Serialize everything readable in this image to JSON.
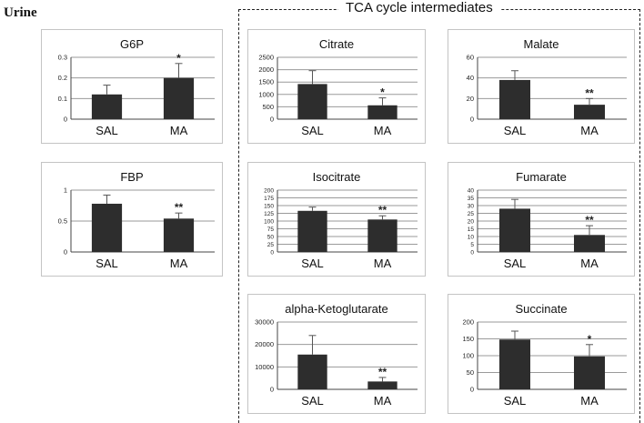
{
  "page": {
    "label": "Urine",
    "group_title": "TCA cycle intermediates"
  },
  "chart_data": [
    {
      "id": "g6p",
      "type": "bar",
      "title": "G6P",
      "categories": [
        "SAL",
        "MA"
      ],
      "values": [
        0.12,
        0.2
      ],
      "errors": [
        0.045,
        0.07
      ],
      "significance": [
        "",
        "*"
      ],
      "ylim": [
        0,
        0.3
      ],
      "yticks": [
        "0",
        "0.1",
        "0.2",
        "0.3"
      ],
      "ytick_values": [
        0,
        0.1,
        0.2,
        0.3
      ]
    },
    {
      "id": "fbp",
      "type": "bar",
      "title": "FBP",
      "categories": [
        "SAL",
        "MA"
      ],
      "values": [
        0.78,
        0.54
      ],
      "errors": [
        0.14,
        0.09
      ],
      "significance": [
        "",
        "**"
      ],
      "ylim": [
        0,
        1
      ],
      "yticks": [
        "0",
        "0.5",
        "1"
      ],
      "ytick_values": [
        0,
        0.5,
        1
      ]
    },
    {
      "id": "citrate",
      "type": "bar",
      "title": "Citrate",
      "categories": [
        "SAL",
        "MA"
      ],
      "values": [
        1420,
        560
      ],
      "errors": [
        540,
        300
      ],
      "significance": [
        "",
        "*"
      ],
      "ylim": [
        0,
        2500
      ],
      "yticks": [
        "0",
        "500",
        "1000",
        "1500",
        "2000",
        "2500"
      ],
      "ytick_values": [
        0,
        500,
        1000,
        1500,
        2000,
        2500
      ]
    },
    {
      "id": "malate",
      "type": "bar",
      "title": "Malate",
      "categories": [
        "SAL",
        "MA"
      ],
      "values": [
        38,
        14
      ],
      "errors": [
        9,
        6
      ],
      "significance": [
        "",
        "**"
      ],
      "ylim": [
        0,
        60
      ],
      "yticks": [
        "0",
        "20",
        "40",
        "60"
      ],
      "ytick_values": [
        0,
        20,
        40,
        60
      ]
    },
    {
      "id": "isocitrate",
      "type": "bar",
      "title": "Isocitrate",
      "categories": [
        "SAL",
        "MA"
      ],
      "values": [
        133,
        105
      ],
      "errors": [
        12,
        12
      ],
      "significance": [
        "",
        "**"
      ],
      "ylim": [
        0,
        200
      ],
      "yticks": [
        "0",
        "25",
        "50",
        "75",
        "100",
        "125",
        "150",
        "175",
        "200"
      ],
      "ytick_values": [
        0,
        25,
        50,
        75,
        100,
        125,
        150,
        175,
        200
      ]
    },
    {
      "id": "fumarate",
      "type": "bar",
      "title": "Fumarate",
      "categories": [
        "SAL",
        "MA"
      ],
      "values": [
        28,
        11
      ],
      "errors": [
        6,
        6
      ],
      "significance": [
        "",
        "**"
      ],
      "ylim": [
        0,
        40
      ],
      "yticks": [
        "0",
        "5",
        "10",
        "15",
        "20",
        "25",
        "30",
        "35",
        "40"
      ],
      "ytick_values": [
        0,
        5,
        10,
        15,
        20,
        25,
        30,
        35,
        40
      ]
    },
    {
      "id": "akg",
      "type": "bar",
      "title": "alpha-Ketoglutarate",
      "categories": [
        "SAL",
        "MA"
      ],
      "values": [
        15500,
        3500
      ],
      "errors": [
        8500,
        1800
      ],
      "significance": [
        "",
        "**"
      ],
      "ylim": [
        0,
        30000
      ],
      "yticks": [
        "0",
        "10000",
        "20000",
        "30000"
      ],
      "ytick_values": [
        0,
        10000,
        20000,
        30000
      ]
    },
    {
      "id": "succinate",
      "type": "bar",
      "title": "Succinate",
      "categories": [
        "SAL",
        "MA"
      ],
      "values": [
        148,
        98
      ],
      "errors": [
        25,
        35
      ],
      "significance": [
        "",
        "*"
      ],
      "ylim": [
        0,
        200
      ],
      "yticks": [
        "0",
        "50",
        "100",
        "150",
        "200"
      ],
      "ytick_values": [
        0,
        50,
        100,
        150,
        200
      ]
    }
  ],
  "colors": {
    "bar": "#2d2d2d",
    "grid": "#9a9a9a",
    "panel_border": "#c4c4c4"
  }
}
